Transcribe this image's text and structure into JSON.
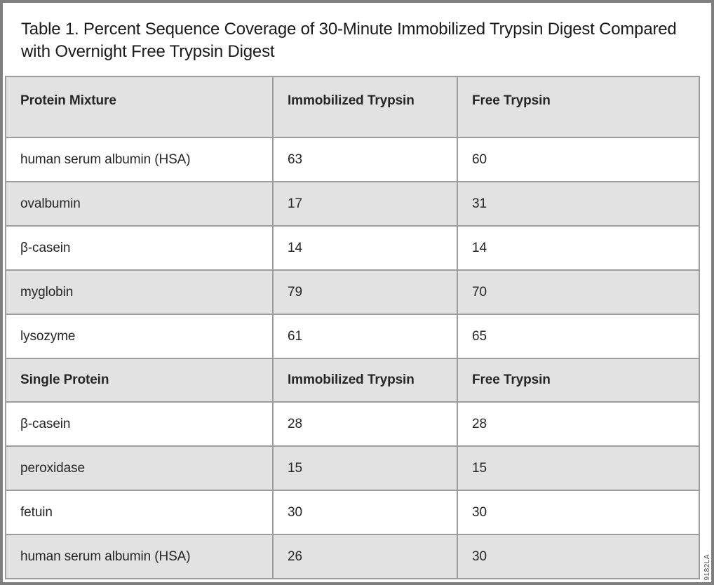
{
  "title": "Table 1. Percent Sequence Coverage of 30-Minute Immobilized Trypsin Digest Compared with Overnight Free Trypsin Digest",
  "watermark": "9182LA",
  "colors": {
    "frame_border": "#7f7f7f",
    "grid_line": "#9d9d9d",
    "shaded_row": "#e2e2e2",
    "text": "#262626"
  },
  "chart_data": {
    "type": "table",
    "title": "Table 1. Percent Sequence Coverage of 30-Minute Immobilized Trypsin Digest Compared with Overnight Free Trypsin Digest",
    "sections": [
      {
        "header": [
          "Protein Mixture",
          "Immobilized Trypsin",
          "Free Trypsin"
        ],
        "rows": [
          [
            "human serum albumin (HSA)",
            63,
            60
          ],
          [
            "ovalbumin",
            17,
            31
          ],
          [
            "β-casein",
            14,
            14
          ],
          [
            "myglobin",
            79,
            70
          ],
          [
            "lysozyme",
            61,
            65
          ]
        ]
      },
      {
        "header": [
          "Single Protein",
          "Immobilized Trypsin",
          "Free Trypsin"
        ],
        "rows": [
          [
            "β-casein",
            28,
            28
          ],
          [
            "peroxidase",
            15,
            15
          ],
          [
            "fetuin",
            30,
            30
          ],
          [
            "human serum albumin (HSA)",
            26,
            30
          ]
        ]
      }
    ]
  }
}
